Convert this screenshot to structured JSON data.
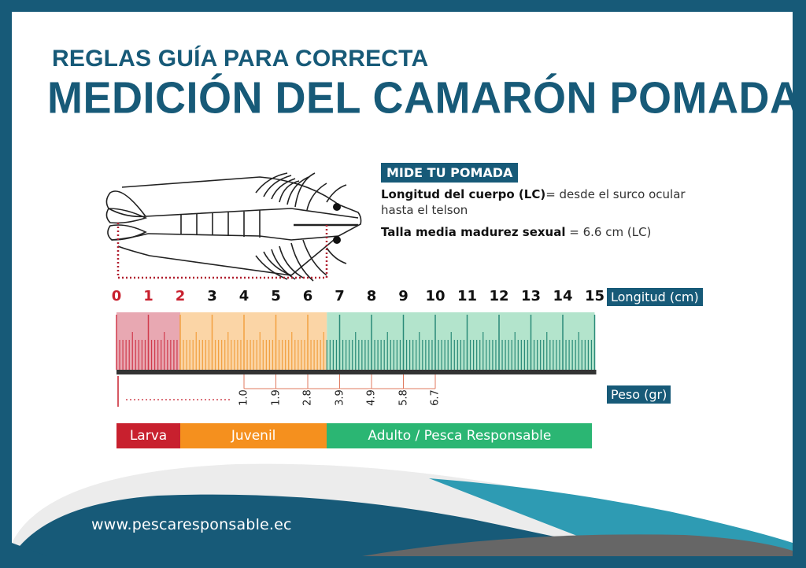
{
  "header": {
    "title_line1": "REGLAS GUÍA PARA CORRECTA",
    "title_line2": "MEDICIÓN DEL CAMARÓN POMADA"
  },
  "info": {
    "badge": "MIDE TU POMADA",
    "body_length_label": "Longitud del cuerpo (LC)",
    "body_length_eq": "= desde el surco ocular",
    "body_length_cont": "hasta el telson",
    "maturity_label": "Talla media madurez sexual",
    "maturity_value": " = 6.6 cm (LC)"
  },
  "ruler": {
    "length_axis_label": "Longitud (cm)",
    "weight_axis_label": "Peso (gr)",
    "cm_ticks": [
      "0",
      "1",
      "2",
      "3",
      "4",
      "5",
      "6",
      "7",
      "8",
      "9",
      "10",
      "11",
      "12",
      "13",
      "14",
      "15"
    ],
    "weight_values": [
      "1.0",
      "1.9",
      "2.8",
      "3.9",
      "4.9",
      "5.8",
      "6.7"
    ],
    "weight_at_cm": [
      4,
      5,
      6,
      7,
      8,
      9,
      10
    ]
  },
  "stages": [
    {
      "label": "Larva",
      "from_cm": 0,
      "to_cm": 2,
      "color": "#c8202e",
      "ruler_fill": "#e8a8b2",
      "tick_color": "#d03a4c"
    },
    {
      "label": "Juvenil",
      "from_cm": 2,
      "to_cm": 6.6,
      "color": "#f5901e",
      "ruler_fill": "#fbd5a6",
      "tick_color": "#f2a040"
    },
    {
      "label": "Adulto / Pesca Responsable",
      "from_cm": 6.6,
      "to_cm": 15,
      "color": "#2bb673",
      "ruler_fill": "#b3e4cc",
      "tick_color": "#2a8a78"
    }
  ],
  "colors": {
    "brand_blue": "#175a78",
    "teal": "#2e9bb3",
    "gray": "#666666",
    "light_gray": "#ececec"
  },
  "footer": {
    "url": "www.pescaresponsable.ec"
  }
}
